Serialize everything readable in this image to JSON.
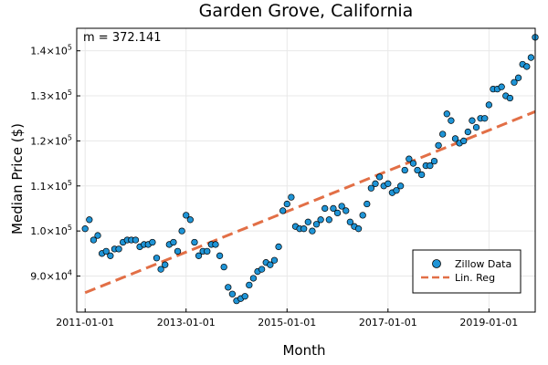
{
  "chart_data": {
    "type": "scatter",
    "title": "Garden Grove, California",
    "xlabel": "Month",
    "ylabel": "Median Price ($)",
    "annotation": "m = 372.141",
    "x_ticks": [
      "2011-01-01",
      "2013-01-01",
      "2015-01-01",
      "2017-01-01",
      "2019-01-01"
    ],
    "y_ticks": [
      {
        "value": 90000,
        "mant": "9.0×10",
        "exp": "4"
      },
      {
        "value": 100000,
        "mant": "1.0×10",
        "exp": "5"
      },
      {
        "value": 110000,
        "mant": "1.1×10",
        "exp": "5"
      },
      {
        "value": 120000,
        "mant": "1.2×10",
        "exp": "5"
      },
      {
        "value": 130000,
        "mant": "1.3×10",
        "exp": "5"
      },
      {
        "value": 140000,
        "mant": "1.4×10",
        "exp": "5"
      }
    ],
    "xlim": [
      "2010-11-01",
      "2019-12-01"
    ],
    "ylim": [
      82000,
      145000
    ],
    "grid": true,
    "legend_position": "bottom-right",
    "series": [
      {
        "name": "Zillow Data",
        "kind": "scatter",
        "color": "#1f94d6",
        "start": "2011-01-01",
        "values": [
          100500,
          102500,
          98000,
          99000,
          95000,
          95500,
          94500,
          96000,
          96000,
          97500,
          98000,
          98000,
          98000,
          96500,
          97000,
          97000,
          97500,
          94000,
          91500,
          92500,
          97000,
          97500,
          95500,
          100000,
          103500,
          102500,
          97500,
          94500,
          95500,
          95500,
          97000,
          97000,
          94500,
          92000,
          87500,
          86000,
          84500,
          85000,
          85500,
          88000,
          89500,
          91000,
          91500,
          93000,
          92500,
          93500,
          96500,
          104500,
          106000,
          107500,
          101000,
          100500,
          100500,
          102000,
          100000,
          101500,
          102500,
          105000,
          102500,
          105000,
          104000,
          105500,
          104500,
          102000,
          101000,
          100500,
          103500,
          106000,
          109500,
          110500,
          112000,
          110000,
          110500,
          108500,
          109000,
          110000,
          113500,
          116000,
          115000,
          113500,
          112500,
          114500,
          114500,
          115500,
          119000,
          121500,
          126000,
          124500,
          120500,
          119500,
          120000,
          122000,
          124500,
          123000,
          125000,
          125000,
          128000,
          131500,
          131500,
          132000,
          130000,
          129500,
          133000,
          134000,
          137000,
          136500,
          138500,
          143000
        ]
      },
      {
        "name": "Lin. Reg",
        "kind": "line",
        "color": "#e26f46",
        "start": "2011-01-01",
        "end": "2019-12-01",
        "y_start": 86300,
        "y_end": 126500
      }
    ]
  }
}
